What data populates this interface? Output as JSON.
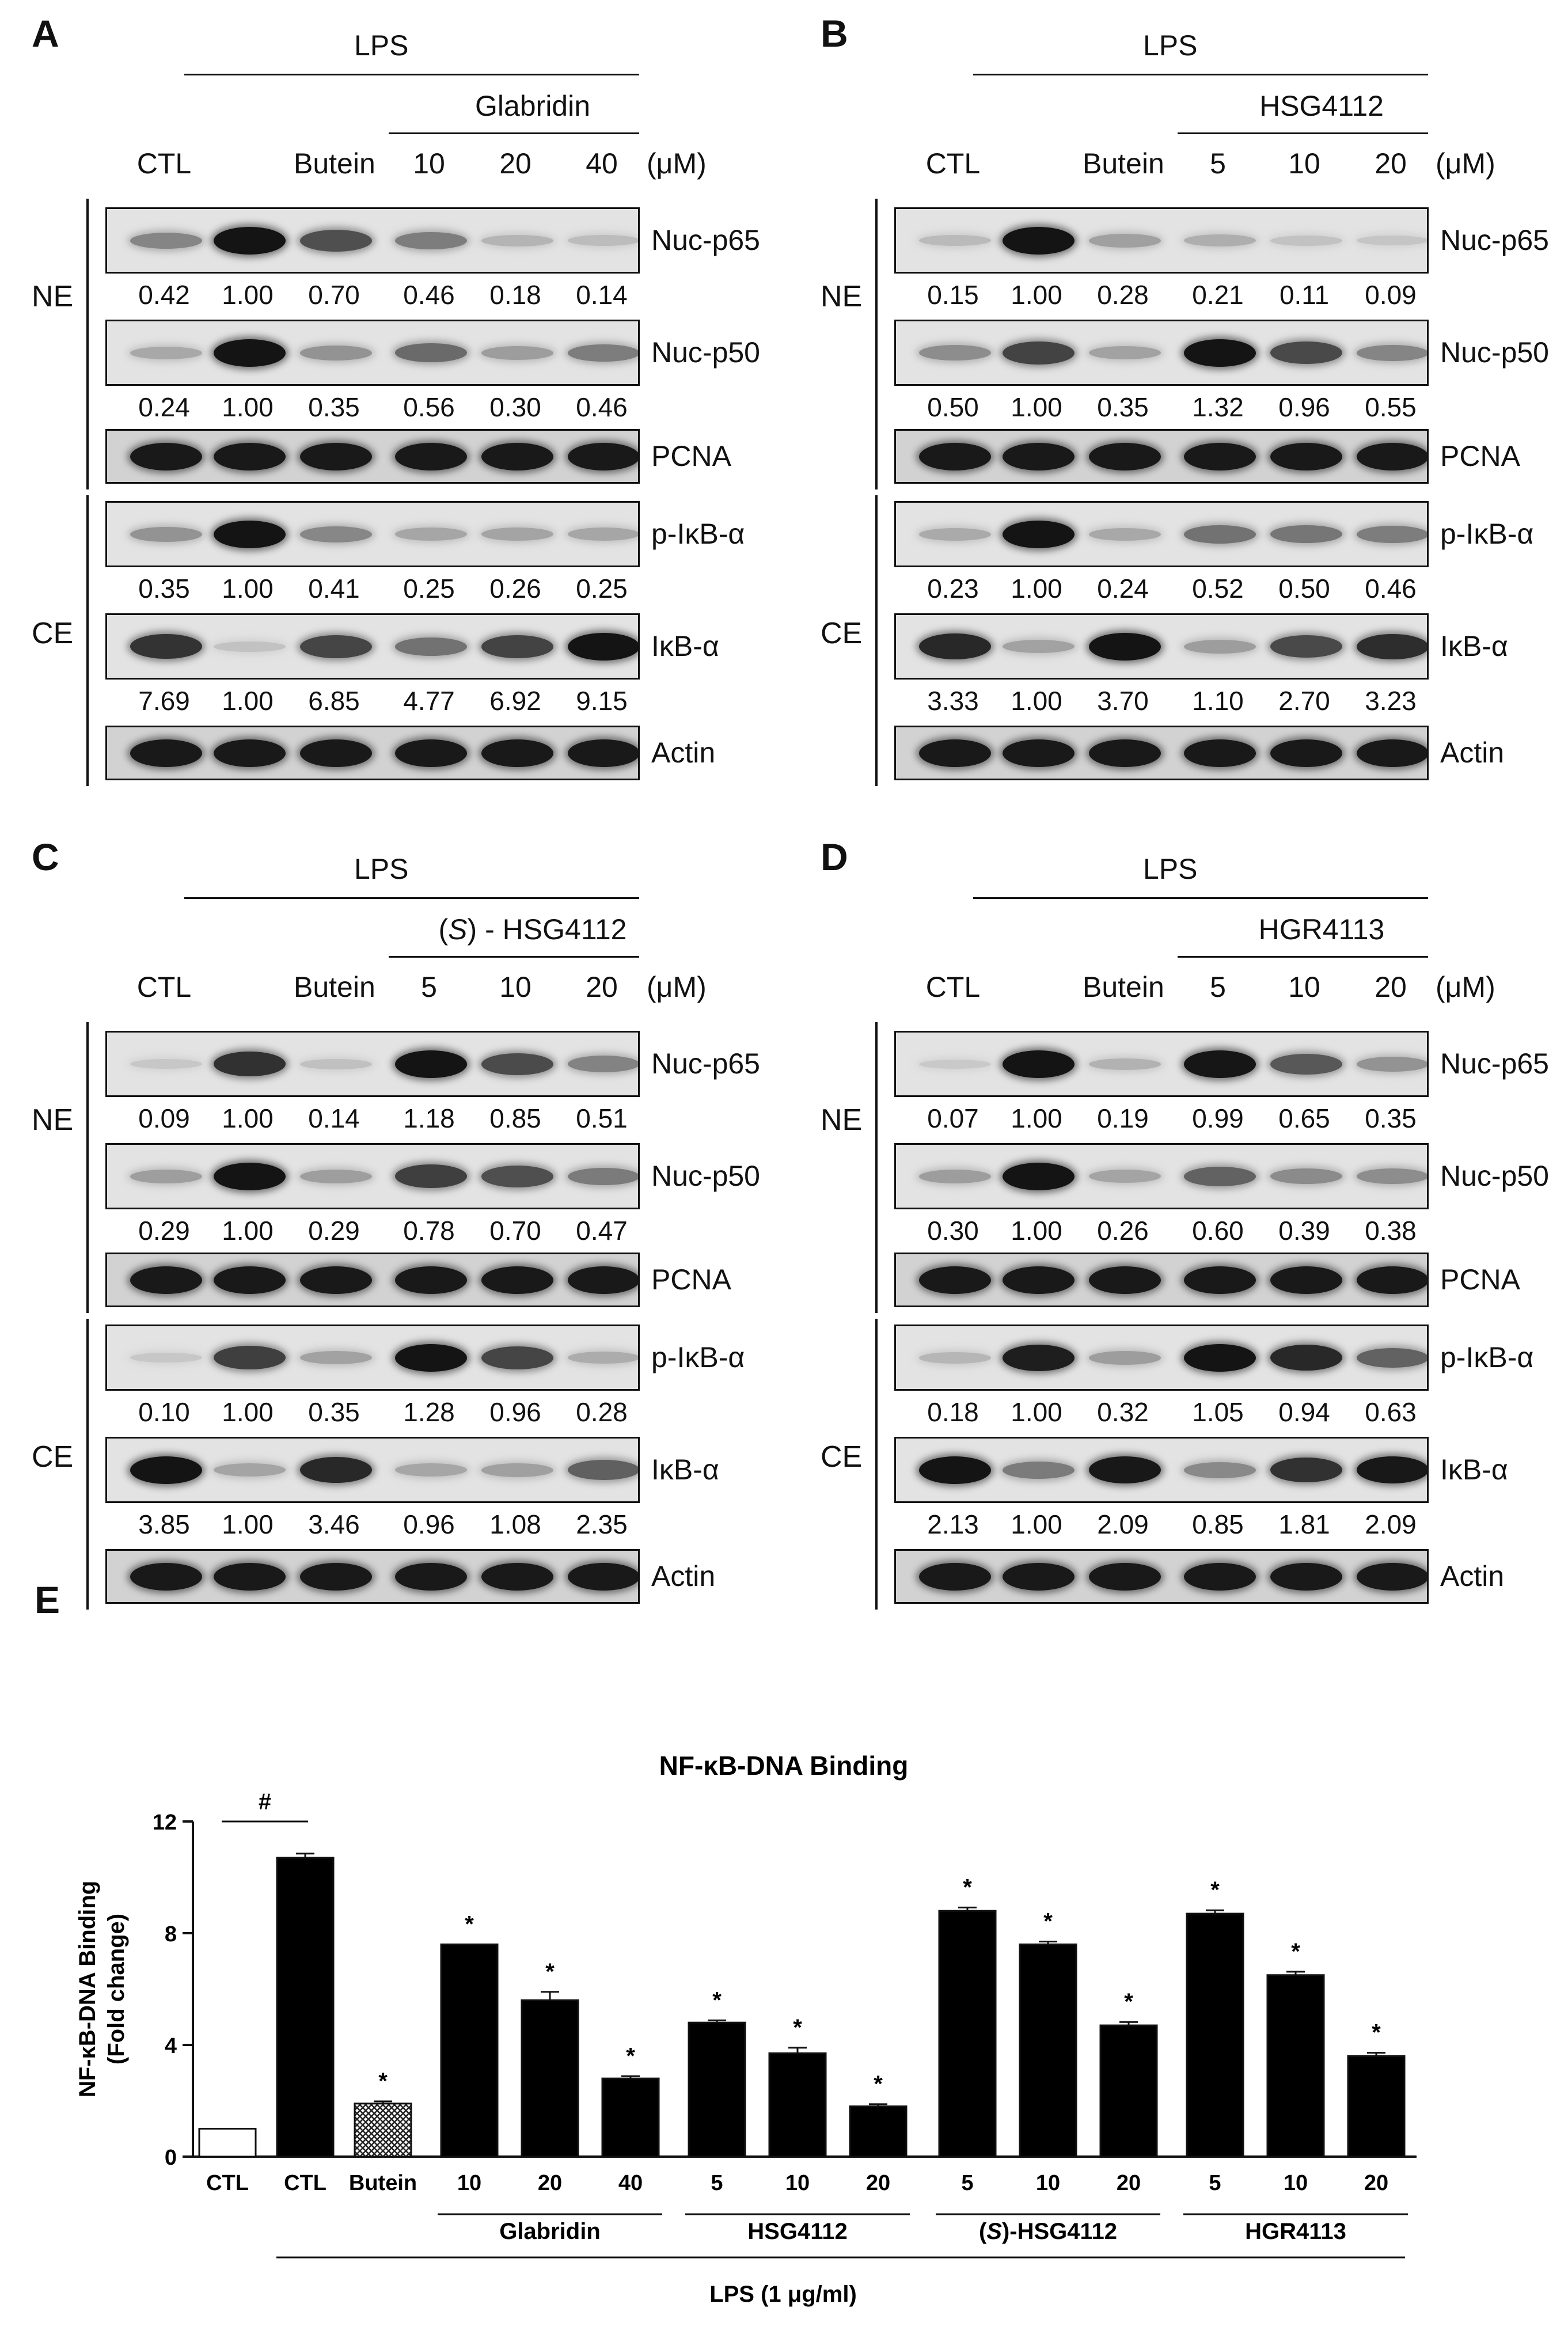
{
  "unit": "(μM)",
  "panels": [
    {
      "label": "A",
      "treatment": "LPS",
      "compound": "Glabridin",
      "lanes": [
        "CTL",
        "",
        "Butein",
        "10",
        "20",
        "40"
      ],
      "ne_label": "NE",
      "ce_label": "CE",
      "rows": [
        {
          "protein": "Nuc-p65",
          "values": [
            "0.42",
            "1.00",
            "0.70",
            "0.46",
            "0.18",
            "0.14"
          ],
          "intensity": [
            0.42,
            1.0,
            0.7,
            0.46,
            0.18,
            0.14
          ]
        },
        {
          "protein": "Nuc-p50",
          "values": [
            "0.24",
            "1.00",
            "0.35",
            "0.56",
            "0.30",
            "0.46"
          ],
          "intensity": [
            0.24,
            1.0,
            0.35,
            0.56,
            0.3,
            0.46
          ]
        },
        {
          "protein": "PCNA",
          "values": [],
          "intensity": [
            1,
            1,
            1,
            1,
            1,
            1
          ]
        },
        {
          "protein": "p-IκB-α",
          "values": [
            "0.35",
            "1.00",
            "0.41",
            "0.25",
            "0.26",
            "0.25"
          ],
          "intensity": [
            0.35,
            1.0,
            0.41,
            0.25,
            0.26,
            0.25
          ]
        },
        {
          "protein": "IκB-α",
          "values": [
            "7.69",
            "1.00",
            "6.85",
            "4.77",
            "6.92",
            "9.15"
          ],
          "intensity": [
            0.84,
            0.11,
            0.75,
            0.52,
            0.76,
            1.0
          ]
        },
        {
          "protein": "Actin",
          "values": [],
          "intensity": [
            1,
            1,
            1,
            1,
            1,
            1
          ]
        }
      ]
    },
    {
      "label": "B",
      "treatment": "LPS",
      "compound": "HSG4112",
      "lanes": [
        "CTL",
        "",
        "Butein",
        "5",
        "10",
        "20"
      ],
      "ne_label": "NE",
      "ce_label": "CE",
      "rows": [
        {
          "protein": "Nuc-p65",
          "values": [
            "0.15",
            "1.00",
            "0.28",
            "0.21",
            "0.11",
            "0.09"
          ],
          "intensity": [
            0.15,
            1.0,
            0.28,
            0.21,
            0.11,
            0.09
          ]
        },
        {
          "protein": "Nuc-p50",
          "values": [
            "0.50",
            "1.00",
            "0.35",
            "1.32",
            "0.96",
            "0.55"
          ],
          "intensity": [
            0.38,
            0.76,
            0.27,
            1.0,
            0.73,
            0.42
          ]
        },
        {
          "protein": "PCNA",
          "values": [],
          "intensity": [
            1,
            1,
            1,
            1,
            1,
            1
          ]
        },
        {
          "protein": "p-IκB-α",
          "values": [
            "0.23",
            "1.00",
            "0.24",
            "0.52",
            "0.50",
            "0.46"
          ],
          "intensity": [
            0.23,
            1.0,
            0.24,
            0.52,
            0.5,
            0.46
          ]
        },
        {
          "protein": "IκB-α",
          "values": [
            "3.33",
            "1.00",
            "3.70",
            "1.10",
            "2.70",
            "3.23"
          ],
          "intensity": [
            0.9,
            0.27,
            1.0,
            0.3,
            0.73,
            0.87
          ]
        },
        {
          "protein": "Actin",
          "values": [],
          "intensity": [
            1,
            1,
            1,
            1,
            1,
            1
          ]
        }
      ]
    },
    {
      "label": "C",
      "treatment": "LPS",
      "compound_prefix": "(",
      "compound_italic": "S",
      "compound": ") - HSG4112",
      "lanes": [
        "CTL",
        "",
        "Butein",
        "5",
        "10",
        "20"
      ],
      "ne_label": "NE",
      "ce_label": "CE",
      "rows": [
        {
          "protein": "Nuc-p65",
          "values": [
            "0.09",
            "1.00",
            "0.14",
            "1.18",
            "0.85",
            "0.51"
          ],
          "intensity": [
            0.08,
            0.85,
            0.12,
            1.0,
            0.72,
            0.43
          ]
        },
        {
          "protein": "Nuc-p50",
          "values": [
            "0.29",
            "1.00",
            "0.29",
            "0.78",
            "0.70",
            "0.47"
          ],
          "intensity": [
            0.29,
            1.0,
            0.29,
            0.78,
            0.7,
            0.47
          ]
        },
        {
          "protein": "PCNA",
          "values": [],
          "intensity": [
            1,
            1,
            1,
            1,
            1,
            1
          ]
        },
        {
          "protein": "p-IκB-α",
          "values": [
            "0.10",
            "1.00",
            "0.35",
            "1.28",
            "0.96",
            "0.28"
          ],
          "intensity": [
            0.08,
            0.78,
            0.27,
            1.0,
            0.75,
            0.22
          ]
        },
        {
          "protein": "IκB-α",
          "values": [
            "3.85",
            "1.00",
            "3.46",
            "0.96",
            "1.08",
            "2.35"
          ],
          "intensity": [
            1.0,
            0.26,
            0.9,
            0.25,
            0.28,
            0.61
          ]
        },
        {
          "protein": "Actin",
          "values": [],
          "intensity": [
            1,
            1,
            1,
            1,
            1,
            1
          ]
        }
      ]
    },
    {
      "label": "D",
      "treatment": "LPS",
      "compound": "HGR4113",
      "lanes": [
        "CTL",
        "",
        "Butein",
        "5",
        "10",
        "20"
      ],
      "ne_label": "NE",
      "ce_label": "CE",
      "rows": [
        {
          "protein": "Nuc-p65",
          "values": [
            "0.07",
            "1.00",
            "0.19",
            "0.99",
            "0.65",
            "0.35"
          ],
          "intensity": [
            0.07,
            1.0,
            0.19,
            0.99,
            0.65,
            0.35
          ]
        },
        {
          "protein": "Nuc-p50",
          "values": [
            "0.30",
            "1.00",
            "0.26",
            "0.60",
            "0.39",
            "0.38"
          ],
          "intensity": [
            0.3,
            1.0,
            0.26,
            0.6,
            0.39,
            0.38
          ]
        },
        {
          "protein": "PCNA",
          "values": [],
          "intensity": [
            1,
            1,
            1,
            1,
            1,
            1
          ]
        },
        {
          "protein": "p-IκB-α",
          "values": [
            "0.18",
            "1.00",
            "0.32",
            "1.05",
            "0.94",
            "0.63"
          ],
          "intensity": [
            0.17,
            0.95,
            0.3,
            1.0,
            0.9,
            0.6
          ]
        },
        {
          "protein": "IκB-α",
          "values": [
            "2.13",
            "1.00",
            "2.09",
            "0.85",
            "1.81",
            "2.09"
          ],
          "intensity": [
            1.0,
            0.47,
            0.98,
            0.4,
            0.85,
            0.98
          ]
        },
        {
          "protein": "Actin",
          "values": [],
          "intensity": [
            1,
            1,
            1,
            1,
            1,
            1
          ]
        }
      ]
    }
  ],
  "panel_e": {
    "label": "E",
    "group_labels": [
      {
        "text": "Glabridin"
      },
      {
        "text": "HSG4112"
      },
      {
        "prefix": "(",
        "italic": "S",
        "text": ")-HSG4112"
      },
      {
        "text": "HGR4113"
      }
    ],
    "lps_label": "LPS (1 μg/ml)"
  },
  "chart_data": {
    "type": "bar",
    "title": "NF-κB-DNA Binding",
    "ylabel": "NF-κB-DNA Binding (Fold change)",
    "ylabel_lines": [
      "NF-κB-DNA Binding",
      "(Fold change)"
    ],
    "ylim": [
      0,
      12
    ],
    "yticks": [
      0,
      4,
      8,
      12
    ],
    "categories": [
      "CTL",
      "CTL",
      "Butein",
      "10",
      "20",
      "40",
      "5",
      "10",
      "20",
      "5",
      "10",
      "20",
      "5",
      "10",
      "20"
    ],
    "values": [
      1.0,
      10.7,
      1.9,
      7.6,
      5.6,
      2.8,
      4.8,
      3.7,
      1.8,
      8.8,
      7.6,
      4.7,
      8.7,
      6.5,
      3.6
    ],
    "errors": [
      0,
      0.15,
      0.08,
      0,
      0.3,
      0.08,
      0.08,
      0.2,
      0.08,
      0.12,
      0.1,
      0.12,
      0.12,
      0.12,
      0.12
    ],
    "fills": [
      "white",
      "black",
      "hatched",
      "black",
      "black",
      "black",
      "black",
      "black",
      "black",
      "black",
      "black",
      "black",
      "black",
      "black",
      "black"
    ],
    "annotations": [
      "",
      "#",
      "*",
      "*",
      "*",
      "*",
      "*",
      "*",
      "*",
      "*",
      "*",
      "*",
      "*",
      "*",
      "*"
    ]
  }
}
